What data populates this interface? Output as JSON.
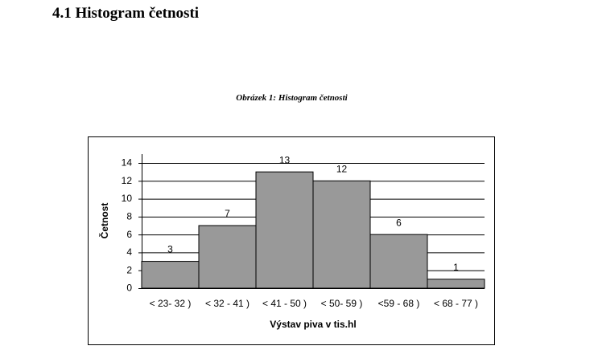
{
  "heading": "4.1 Histogram četnosti",
  "caption": "Obrázek 1: Histogram četnosti",
  "chart_data": {
    "type": "bar",
    "categories": [
      "< 23- 32 )",
      "< 32 - 41 )",
      "< 41 - 50 )",
      "< 50- 59 )",
      "<59 - 68 )",
      "< 68 - 77 )"
    ],
    "values": [
      3,
      7,
      13,
      12,
      6,
      1
    ],
    "color": "#999999",
    "ylabel": "Četnost",
    "xlabel": "Výstav piva v tis.hl",
    "ylim": [
      0,
      14
    ],
    "yticks": [
      0,
      2,
      4,
      6,
      8,
      10,
      12,
      14
    ],
    "grid": true
  }
}
